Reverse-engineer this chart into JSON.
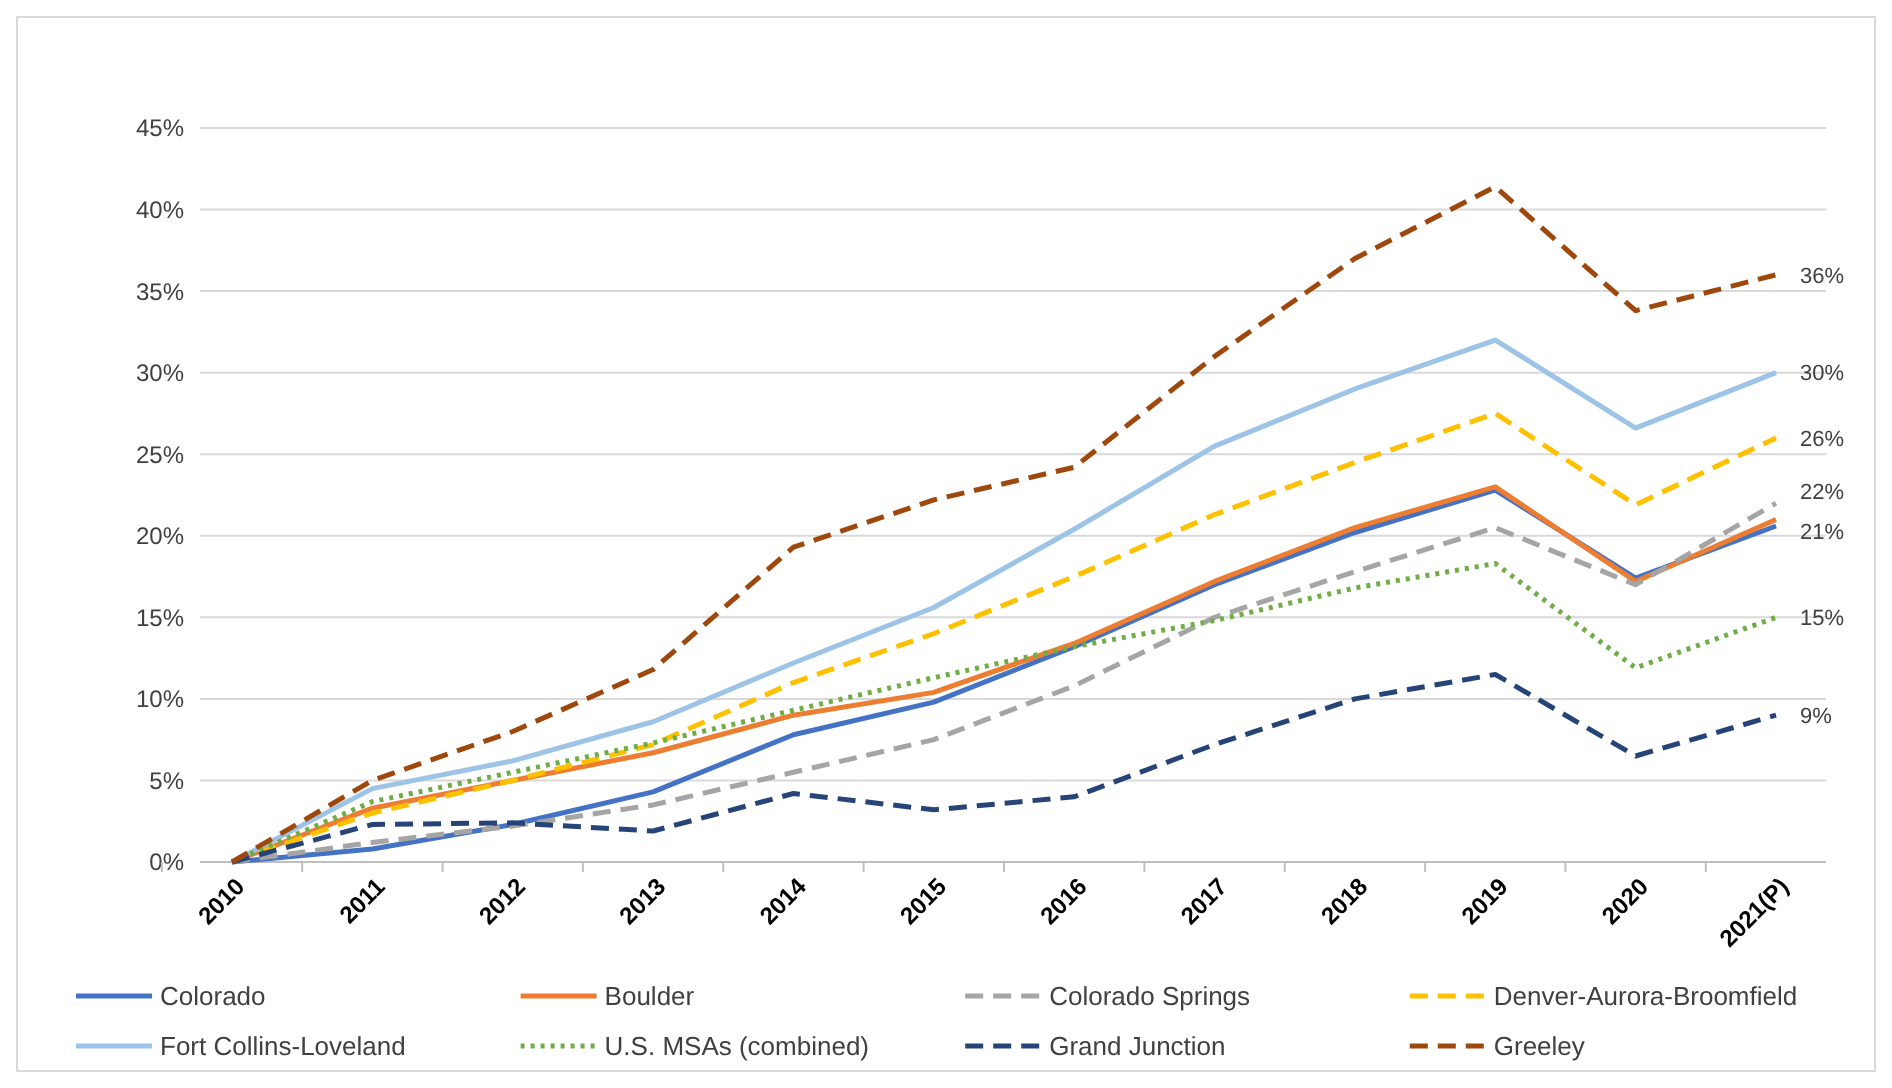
{
  "chart_data": {
    "type": "line",
    "categories": [
      "2010",
      "2011",
      "2012",
      "2013",
      "2014",
      "2015",
      "2016",
      "2017",
      "2018",
      "2019",
      "2020",
      "2021(P)"
    ],
    "series": [
      {
        "name": "Colorado",
        "color": "#4472c4",
        "line_style": "solid",
        "values": [
          0,
          0.8,
          2.3,
          4.3,
          7.8,
          9.8,
          13.2,
          17,
          20.2,
          22.8,
          17.4,
          20.6
        ]
      },
      {
        "name": "Boulder",
        "color": "#ed7d31",
        "line_style": "solid",
        "values": [
          0,
          3.3,
          5,
          6.7,
          9,
          10.4,
          13.4,
          17.2,
          20.5,
          23,
          17.2,
          21
        ]
      },
      {
        "name": "Colorado Springs",
        "color": "#a5a5a5",
        "line_style": "dashed",
        "values": [
          0,
          1.2,
          2.2,
          3.5,
          5.5,
          7.5,
          10.8,
          15,
          17.8,
          20.5,
          17,
          22
        ]
      },
      {
        "name": "Denver-Aurora-Broomfield",
        "color": "#ffc000",
        "line_style": "dashed",
        "values": [
          0,
          3,
          5,
          7.2,
          11,
          14,
          17.5,
          21.3,
          24.5,
          27.5,
          21.9,
          26
        ]
      },
      {
        "name": "Fort Collins-Loveland",
        "color": "#9dc3e6",
        "line_style": "solid",
        "values": [
          0,
          4.5,
          6.2,
          8.6,
          12.2,
          15.6,
          20.4,
          25.5,
          29,
          32,
          26.6,
          30
        ]
      },
      {
        "name": "U.S. MSAs (combined)",
        "color": "#70ad47",
        "line_style": "dotted",
        "values": [
          0,
          3.7,
          5.5,
          7.3,
          9.3,
          11.3,
          13.2,
          14.8,
          16.8,
          18.3,
          11.9,
          15
        ]
      },
      {
        "name": "Grand Junction",
        "color": "#264478",
        "line_style": "dashed",
        "values": [
          0,
          2.3,
          2.4,
          1.9,
          4.2,
          3.2,
          4,
          7.2,
          10,
          11.5,
          6.5,
          9
        ]
      },
      {
        "name": "Greeley",
        "color": "#9e480e",
        "line_style": "dashed",
        "values": [
          0,
          5,
          8,
          11.8,
          19.3,
          22.2,
          24.2,
          31,
          37,
          41.4,
          33.8,
          36
        ]
      }
    ],
    "annotations": [
      {
        "text": "36%",
        "x": "2021(P)",
        "y": 36
      },
      {
        "text": "30%",
        "x": "2021(P)",
        "y": 30
      },
      {
        "text": "26%",
        "x": "2021(P)",
        "y": 26
      },
      {
        "text": "22%",
        "x": "2021(P)",
        "y": 22
      },
      {
        "text": "21%",
        "x": "2021(P)",
        "y": 21
      },
      {
        "text": "15%",
        "x": "2021(P)",
        "y": 15
      },
      {
        "text": "9%",
        "x": "2021(P)",
        "y": 9
      }
    ],
    "ylim": [
      0,
      45
    ],
    "yticks": [
      {
        "value": 0,
        "label": "0%"
      },
      {
        "value": 5,
        "label": "5%"
      },
      {
        "value": 10,
        "label": "10%"
      },
      {
        "value": 15,
        "label": "15%"
      },
      {
        "value": 20,
        "label": "20%"
      },
      {
        "value": 25,
        "label": "25%"
      },
      {
        "value": 30,
        "label": "30%"
      },
      {
        "value": 35,
        "label": "35%"
      },
      {
        "value": 40,
        "label": "40%"
      },
      {
        "value": 45,
        "label": "45%"
      }
    ],
    "grid": "y",
    "legend": "bottom"
  }
}
